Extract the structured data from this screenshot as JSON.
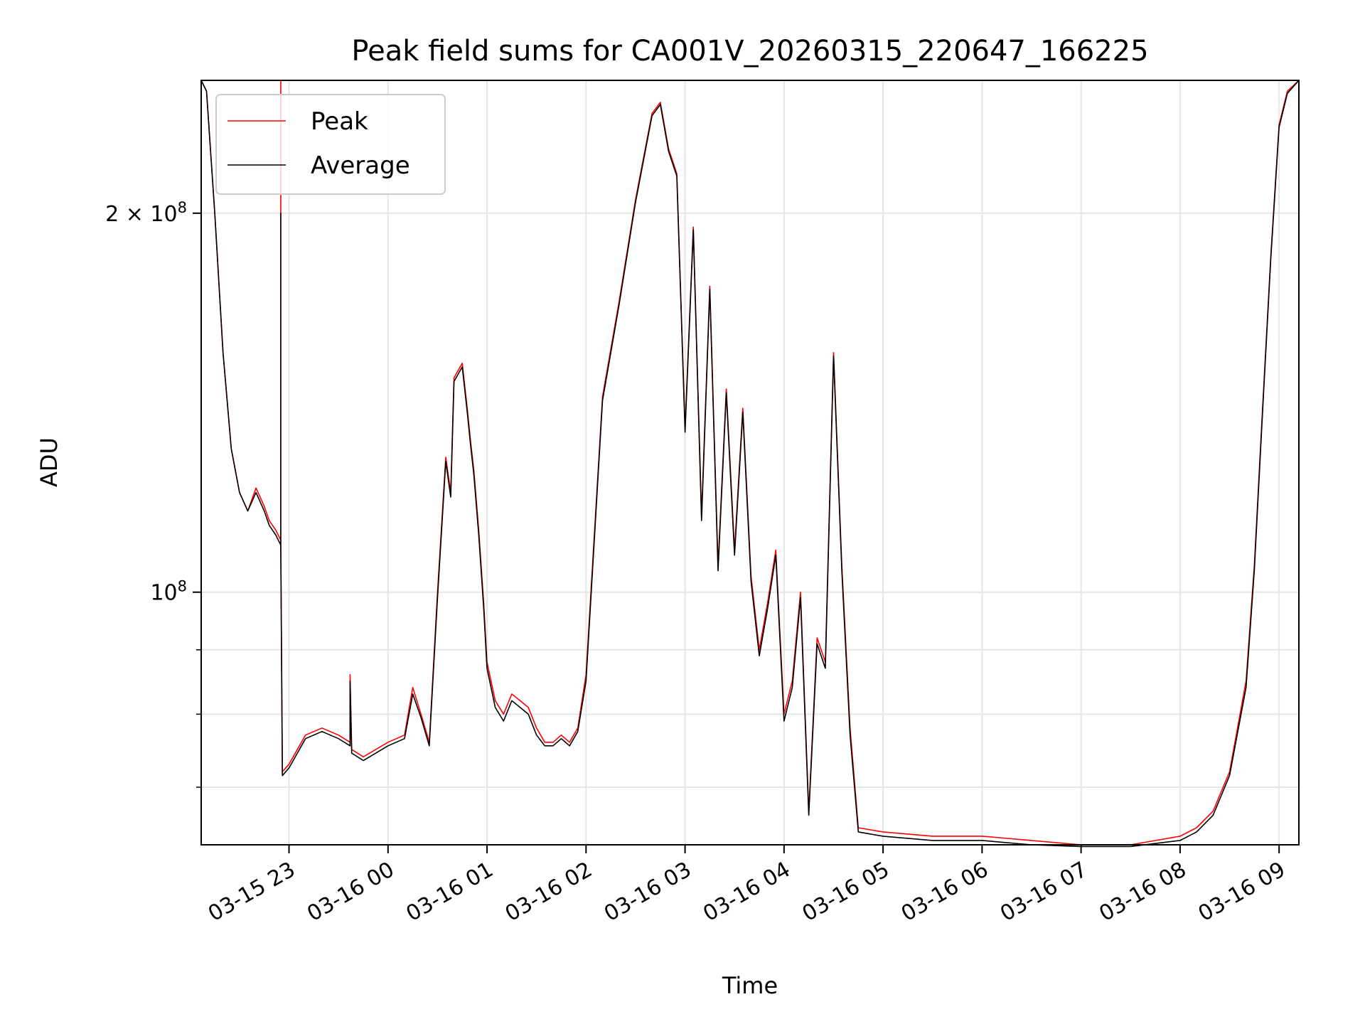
{
  "chart_data": {
    "type": "line",
    "title": "Peak field sums for CA001V_20260315_220647_166225",
    "xlabel": "Time",
    "ylabel": "ADU",
    "xlim": [
      "2026-03-15T22:06:47",
      "2026-03-16T09:12:00"
    ],
    "ylim": [
      63000000,
      255000000
    ],
    "yscale": "log",
    "grid": true,
    "legend_position": "top-left",
    "x_ticks": [
      {
        "t": "2026-03-15T23:00",
        "label": "03-15 23"
      },
      {
        "t": "2026-03-16T00:00",
        "label": "03-16 00"
      },
      {
        "t": "2026-03-16T01:00",
        "label": "03-16 01"
      },
      {
        "t": "2026-03-16T02:00",
        "label": "03-16 02"
      },
      {
        "t": "2026-03-16T03:00",
        "label": "03-16 03"
      },
      {
        "t": "2026-03-16T04:00",
        "label": "03-16 04"
      },
      {
        "t": "2026-03-16T05:00",
        "label": "03-16 05"
      },
      {
        "t": "2026-03-16T06:00",
        "label": "03-16 06"
      },
      {
        "t": "2026-03-16T07:00",
        "label": "03-16 07"
      },
      {
        "t": "2026-03-16T08:00",
        "label": "03-16 08"
      },
      {
        "t": "2026-03-16T09:00",
        "label": "03-16 09"
      }
    ],
    "y_major_ticks": [
      {
        "value": 100000000,
        "base": "10",
        "exp": "8",
        "coef": ""
      },
      {
        "value": 200000000,
        "base": "10",
        "exp": "8",
        "coef": "2 × "
      }
    ],
    "y_minor_ticks": [
      70000000,
      80000000,
      90000000
    ],
    "series": [
      {
        "name": "Peak",
        "color": "#ff0000",
        "x": [
          "2026-03-15T22:06:47",
          "2026-03-15T22:10",
          "2026-03-15T22:15",
          "2026-03-15T22:20",
          "2026-03-15T22:25",
          "2026-03-15T22:30",
          "2026-03-15T22:35",
          "2026-03-15T22:40",
          "2026-03-15T22:45",
          "2026-03-15T22:48",
          "2026-03-15T22:50",
          "2026-03-15T22:52",
          "2026-03-15T22:55",
          "2026-03-15T22:55",
          "2026-03-15T22:55",
          "2026-03-15T22:56",
          "2026-03-15T23:00",
          "2026-03-15T23:10",
          "2026-03-15T23:20",
          "2026-03-15T23:30",
          "2026-03-15T23:37",
          "2026-03-15T23:37",
          "2026-03-15T23:38",
          "2026-03-15T23:45",
          "2026-03-16T00:00",
          "2026-03-16T00:10",
          "2026-03-16T00:15",
          "2026-03-16T00:20",
          "2026-03-16T00:25",
          "2026-03-16T00:30",
          "2026-03-16T00:35",
          "2026-03-16T00:38",
          "2026-03-16T00:40",
          "2026-03-16T00:45",
          "2026-03-16T00:48",
          "2026-03-16T00:50",
          "2026-03-16T00:52",
          "2026-03-16T00:55",
          "2026-03-16T00:58",
          "2026-03-16T01:00",
          "2026-03-16T01:05",
          "2026-03-16T01:10",
          "2026-03-16T01:15",
          "2026-03-16T01:20",
          "2026-03-16T01:25",
          "2026-03-16T01:30",
          "2026-03-16T01:35",
          "2026-03-16T01:40",
          "2026-03-16T01:45",
          "2026-03-16T01:50",
          "2026-03-16T01:55",
          "2026-03-16T02:00",
          "2026-03-16T02:10",
          "2026-03-16T02:20",
          "2026-03-16T02:30",
          "2026-03-16T02:40",
          "2026-03-16T02:45",
          "2026-03-16T02:50",
          "2026-03-16T02:55",
          "2026-03-16T03:00",
          "2026-03-16T03:05",
          "2026-03-16T03:10",
          "2026-03-16T03:15",
          "2026-03-16T03:20",
          "2026-03-16T03:25",
          "2026-03-16T03:30",
          "2026-03-16T03:35",
          "2026-03-16T03:40",
          "2026-03-16T03:45",
          "2026-03-16T03:50",
          "2026-03-16T03:55",
          "2026-03-16T04:00",
          "2026-03-16T04:05",
          "2026-03-16T04:10",
          "2026-03-16T04:15",
          "2026-03-16T04:20",
          "2026-03-16T04:25",
          "2026-03-16T04:30",
          "2026-03-16T04:35",
          "2026-03-16T04:40",
          "2026-03-16T04:45",
          "2026-03-16T05:00",
          "2026-03-16T05:30",
          "2026-03-16T06:00",
          "2026-03-16T06:30",
          "2026-03-16T07:00",
          "2026-03-16T07:30",
          "2026-03-16T08:00",
          "2026-03-16T08:10",
          "2026-03-16T08:20",
          "2026-03-16T08:30",
          "2026-03-16T08:40",
          "2026-03-16T08:45",
          "2026-03-16T08:50",
          "2026-03-16T08:55",
          "2026-03-16T09:00",
          "2026-03-16T09:05",
          "2026-03-16T09:12"
        ],
        "values": [
          255000000,
          250000000,
          200000000,
          155000000,
          130000000,
          120000000,
          116000000,
          121000000,
          117000000,
          114000000,
          113000000,
          112000000,
          110000000,
          255000000,
          110000000,
          72000000,
          73000000,
          77000000,
          78000000,
          77000000,
          76000000,
          86000000,
          75000000,
          74000000,
          76000000,
          77000000,
          84000000,
          80000000,
          76000000,
          100000000,
          128000000,
          120000000,
          148000000,
          152000000,
          140000000,
          132000000,
          125000000,
          112000000,
          98000000,
          88000000,
          82000000,
          80000000,
          83000000,
          82000000,
          81000000,
          78000000,
          76000000,
          76000000,
          77000000,
          76000000,
          78000000,
          86000000,
          143000000,
          170000000,
          205000000,
          240000000,
          245000000,
          225000000,
          215000000,
          135000000,
          195000000,
          115000000,
          175000000,
          105000000,
          145000000,
          108000000,
          140000000,
          103000000,
          90000000,
          98000000,
          108000000,
          80000000,
          85000000,
          100000000,
          67000000,
          92000000,
          88000000,
          155000000,
          105000000,
          78000000,
          65000000,
          64500000,
          64000000,
          64000000,
          63500000,
          63000000,
          63000000,
          64000000,
          65000000,
          67000000,
          72000000,
          85000000,
          105000000,
          140000000,
          185000000,
          235000000,
          250000000,
          255000000
        ]
      },
      {
        "name": "Average",
        "color": "#000000",
        "x": [
          "2026-03-15T22:06:47",
          "2026-03-15T22:10",
          "2026-03-15T22:15",
          "2026-03-15T22:20",
          "2026-03-15T22:25",
          "2026-03-15T22:30",
          "2026-03-15T22:35",
          "2026-03-15T22:40",
          "2026-03-15T22:45",
          "2026-03-15T22:48",
          "2026-03-15T22:50",
          "2026-03-15T22:52",
          "2026-03-15T22:55",
          "2026-03-15T22:55",
          "2026-03-15T22:55",
          "2026-03-15T22:56",
          "2026-03-15T23:00",
          "2026-03-15T23:10",
          "2026-03-15T23:20",
          "2026-03-15T23:30",
          "2026-03-15T23:37",
          "2026-03-15T23:37",
          "2026-03-15T23:38",
          "2026-03-15T23:45",
          "2026-03-16T00:00",
          "2026-03-16T00:10",
          "2026-03-16T00:15",
          "2026-03-16T00:20",
          "2026-03-16T00:25",
          "2026-03-16T00:30",
          "2026-03-16T00:35",
          "2026-03-16T00:38",
          "2026-03-16T00:40",
          "2026-03-16T00:45",
          "2026-03-16T00:48",
          "2026-03-16T00:50",
          "2026-03-16T00:52",
          "2026-03-16T00:55",
          "2026-03-16T00:58",
          "2026-03-16T01:00",
          "2026-03-16T01:05",
          "2026-03-16T01:10",
          "2026-03-16T01:15",
          "2026-03-16T01:20",
          "2026-03-16T01:25",
          "2026-03-16T01:30",
          "2026-03-16T01:35",
          "2026-03-16T01:40",
          "2026-03-16T01:45",
          "2026-03-16T01:50",
          "2026-03-16T01:55",
          "2026-03-16T02:00",
          "2026-03-16T02:10",
          "2026-03-16T02:20",
          "2026-03-16T02:30",
          "2026-03-16T02:40",
          "2026-03-16T02:45",
          "2026-03-16T02:50",
          "2026-03-16T02:55",
          "2026-03-16T03:00",
          "2026-03-16T03:05",
          "2026-03-16T03:10",
          "2026-03-16T03:15",
          "2026-03-16T03:20",
          "2026-03-16T03:25",
          "2026-03-16T03:30",
          "2026-03-16T03:35",
          "2026-03-16T03:40",
          "2026-03-16T03:45",
          "2026-03-16T03:50",
          "2026-03-16T03:55",
          "2026-03-16T04:00",
          "2026-03-16T04:05",
          "2026-03-16T04:10",
          "2026-03-16T04:15",
          "2026-03-16T04:20",
          "2026-03-16T04:25",
          "2026-03-16T04:30",
          "2026-03-16T04:35",
          "2026-03-16T04:40",
          "2026-03-16T04:45",
          "2026-03-16T05:00",
          "2026-03-16T05:30",
          "2026-03-16T06:00",
          "2026-03-16T06:30",
          "2026-03-16T07:00",
          "2026-03-16T07:30",
          "2026-03-16T08:00",
          "2026-03-16T08:10",
          "2026-03-16T08:20",
          "2026-03-16T08:30",
          "2026-03-16T08:40",
          "2026-03-16T08:45",
          "2026-03-16T08:50",
          "2026-03-16T08:55",
          "2026-03-16T09:00",
          "2026-03-16T09:05",
          "2026-03-16T09:12"
        ],
        "values": [
          255000000,
          250000000,
          200000000,
          155000000,
          130000000,
          120000000,
          116000000,
          120000000,
          116000000,
          113000000,
          112000000,
          111000000,
          109000000,
          200000000,
          109000000,
          71500000,
          72500000,
          76500000,
          77500000,
          76500000,
          75500000,
          85000000,
          74500000,
          73500000,
          75500000,
          76500000,
          83000000,
          79500000,
          75500000,
          99000000,
          127000000,
          119000000,
          147000000,
          151000000,
          139000000,
          131000000,
          124000000,
          111000000,
          97000000,
          87000000,
          81000000,
          79000000,
          82000000,
          81000000,
          80000000,
          77000000,
          75500000,
          75500000,
          76500000,
          75500000,
          77500000,
          85000000,
          142000000,
          169000000,
          204000000,
          239000000,
          244000000,
          224000000,
          214000000,
          134000000,
          194000000,
          114000000,
          174000000,
          104000000,
          144000000,
          107000000,
          139000000,
          102000000,
          89000000,
          97000000,
          107000000,
          79000000,
          84000000,
          99000000,
          66500000,
          91000000,
          87000000,
          154000000,
          104000000,
          77000000,
          64500000,
          64000000,
          63500000,
          63500000,
          63000000,
          62800000,
          62800000,
          63500000,
          64500000,
          66500000,
          71500000,
          84000000,
          104000000,
          139000000,
          184000000,
          234000000,
          249000000,
          255000000
        ]
      }
    ]
  }
}
